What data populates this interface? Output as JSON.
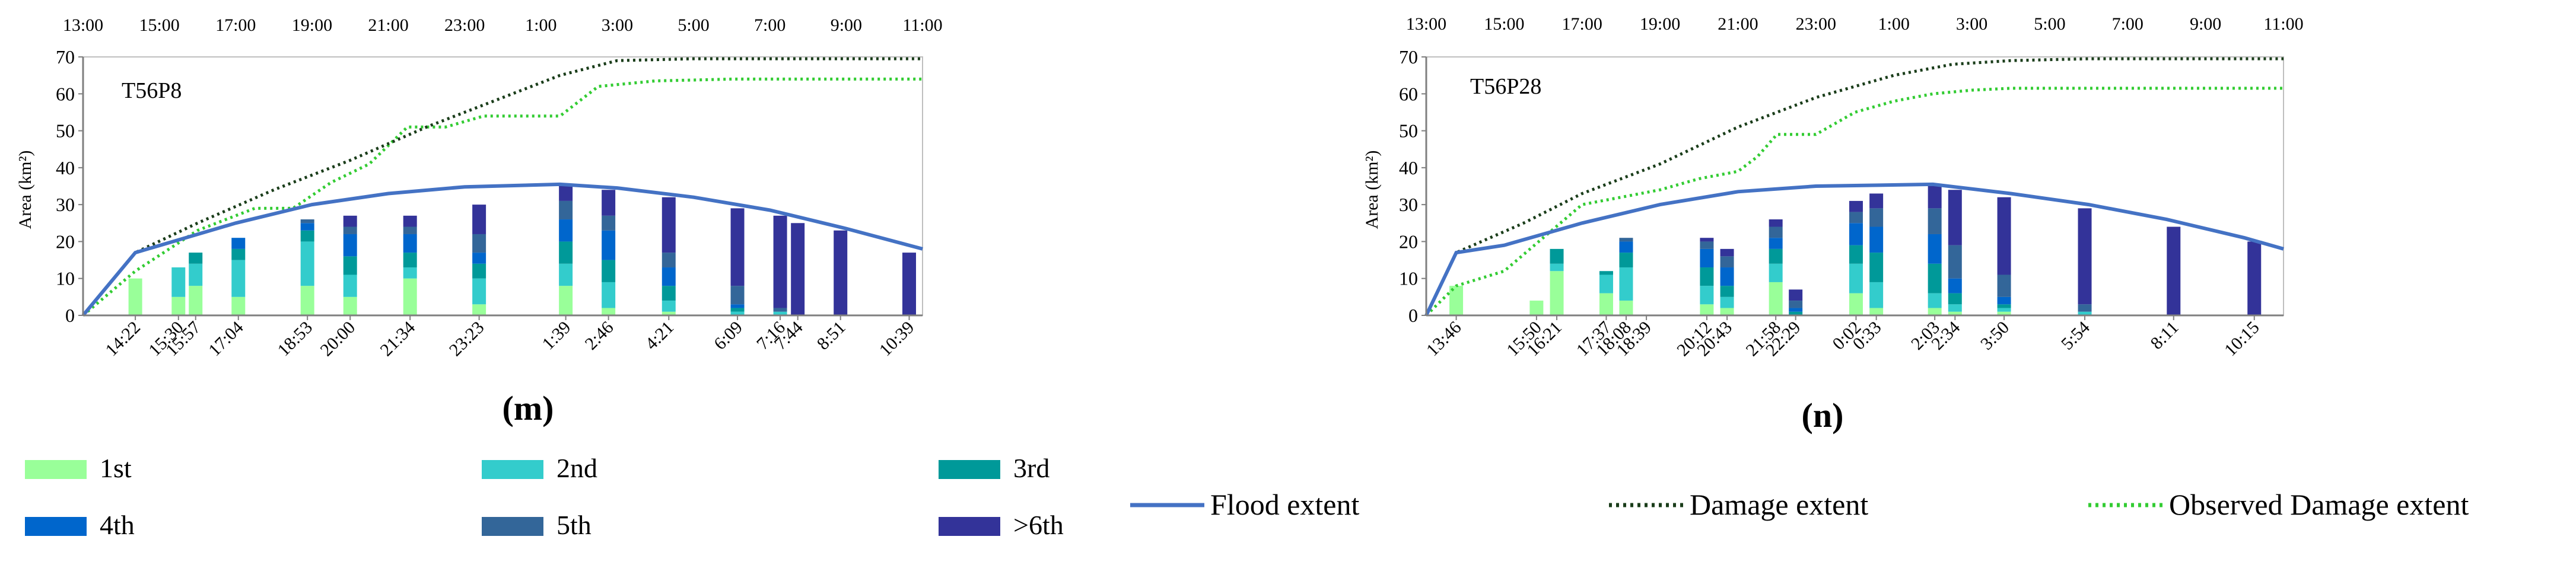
{
  "colors": {
    "rank1": "#99ff99",
    "rank2": "#33cccc",
    "rank3": "#009999",
    "rank4": "#0066cc",
    "rank5": "#336699",
    "rank6plus": "#333399",
    "flood": "#4472c4",
    "damage": "#1a3d1a",
    "observed": "#33cc33"
  },
  "legend": {
    "ranks": [
      "1st",
      "2nd",
      "3rd",
      "4th",
      "5th",
      ">6th"
    ],
    "flood": "Flood extent",
    "damage": "Damage extent",
    "observed": "Observed Damage extent"
  },
  "chart_data": [
    {
      "type": "bar",
      "panel_label": "(m)",
      "title": "T56P8",
      "ylabel": "Area (km²)",
      "ylim": [
        0,
        70
      ],
      "yticks": [
        0,
        10,
        20,
        30,
        40,
        50,
        60,
        70
      ],
      "xlim": [
        13.0,
        35.0
      ],
      "top_ticks": [
        "13:00",
        "15:00",
        "17:00",
        "19:00",
        "21:00",
        "23:00",
        "1:00",
        "3:00",
        "5:00",
        "7:00",
        "9:00",
        "11:00"
      ],
      "bars": [
        {
          "label": "14:22",
          "t": 14.37,
          "segs": [
            10,
            0,
            0,
            0,
            0,
            0
          ]
        },
        {
          "label": "15:30",
          "t": 15.5,
          "segs": [
            5,
            8,
            0,
            0,
            0,
            0
          ]
        },
        {
          "label": "15:57",
          "t": 15.95,
          "segs": [
            8,
            6,
            3,
            0,
            0,
            0
          ]
        },
        {
          "label": "17:04",
          "t": 17.07,
          "segs": [
            5,
            10,
            3,
            3,
            0,
            0
          ]
        },
        {
          "label": "18:53",
          "t": 18.88,
          "segs": [
            8,
            12,
            3,
            2,
            1,
            0
          ]
        },
        {
          "label": "20:00",
          "t": 20.0,
          "segs": [
            5,
            6,
            5,
            6,
            2,
            3
          ]
        },
        {
          "label": "21:34",
          "t": 21.57,
          "segs": [
            10,
            3,
            4,
            5,
            2,
            3
          ]
        },
        {
          "label": "23:23",
          "t": 23.38,
          "segs": [
            3,
            7,
            4,
            3,
            5,
            8
          ]
        },
        {
          "label": "1:39",
          "t": 25.65,
          "segs": [
            8,
            6,
            6,
            6,
            5,
            4
          ]
        },
        {
          "label": "2:46",
          "t": 26.77,
          "segs": [
            2,
            7,
            6,
            8,
            4,
            7
          ]
        },
        {
          "label": "4:21",
          "t": 28.35,
          "segs": [
            1,
            3,
            4,
            5,
            4,
            15
          ]
        },
        {
          "label": "6:09",
          "t": 30.15,
          "segs": [
            0,
            1,
            1,
            1,
            5,
            21
          ]
        },
        {
          "label": "7:16",
          "t": 31.27,
          "segs": [
            0,
            1,
            0,
            0,
            1,
            25
          ]
        },
        {
          "label": "7:44",
          "t": 31.73,
          "segs": [
            0,
            0,
            0,
            0,
            0,
            25
          ]
        },
        {
          "label": "8:51",
          "t": 32.85,
          "segs": [
            0,
            0,
            0,
            0,
            0,
            23
          ]
        },
        {
          "label": "10:39",
          "t": 34.65,
          "segs": [
            0,
            0,
            0,
            0,
            0,
            17
          ]
        }
      ],
      "flood_extent": [
        [
          13.0,
          0
        ],
        [
          14.37,
          17
        ],
        [
          17,
          25
        ],
        [
          19,
          30
        ],
        [
          21,
          33
        ],
        [
          23,
          34.8
        ],
        [
          25.5,
          35.5
        ],
        [
          27,
          34.5
        ],
        [
          29,
          32
        ],
        [
          31,
          28.5
        ],
        [
          33,
          23.5
        ],
        [
          35,
          18
        ]
      ],
      "damage_extent": [
        [
          13.0,
          0
        ],
        [
          14.37,
          17
        ],
        [
          16,
          25
        ],
        [
          18,
          34
        ],
        [
          20,
          42
        ],
        [
          22,
          51
        ],
        [
          24,
          59
        ],
        [
          25.5,
          65
        ],
        [
          27,
          69
        ],
        [
          29,
          69.5
        ],
        [
          31,
          69.5
        ],
        [
          33,
          69.5
        ],
        [
          35,
          69.5
        ]
      ],
      "observed_damage": [
        [
          13.0,
          0
        ],
        [
          14.37,
          12
        ],
        [
          16,
          23
        ],
        [
          17.5,
          29
        ],
        [
          18.5,
          29
        ],
        [
          19.5,
          36
        ],
        [
          20.5,
          41
        ],
        [
          21.5,
          51
        ],
        [
          22.5,
          51
        ],
        [
          23.5,
          54
        ],
        [
          25,
          54
        ],
        [
          25.5,
          54
        ],
        [
          26.5,
          62
        ],
        [
          28,
          63.5
        ],
        [
          30,
          64
        ],
        [
          32,
          64
        ],
        [
          35,
          64
        ]
      ]
    },
    {
      "type": "bar",
      "panel_label": "(n)",
      "title": "T56P28",
      "ylabel": "Area (km²)",
      "ylim": [
        0,
        70
      ],
      "yticks": [
        0,
        10,
        20,
        30,
        40,
        50,
        60,
        70
      ],
      "xlim": [
        13.0,
        35.0
      ],
      "top_ticks": [
        "13:00",
        "15:00",
        "17:00",
        "19:00",
        "21:00",
        "23:00",
        "1:00",
        "3:00",
        "5:00",
        "7:00",
        "9:00",
        "11:00"
      ],
      "bars": [
        {
          "label": "13:46",
          "t": 13.77,
          "segs": [
            8,
            0,
            0,
            0,
            0,
            0
          ]
        },
        {
          "label": "15:50",
          "t": 15.83,
          "segs": [
            4,
            0,
            0,
            0,
            0,
            0
          ]
        },
        {
          "label": "16:21",
          "t": 16.35,
          "segs": [
            12,
            2,
            4,
            0,
            0,
            0
          ]
        },
        {
          "label": "17:37",
          "t": 17.62,
          "segs": [
            6,
            5,
            1,
            0,
            0,
            0
          ]
        },
        {
          "label": "18:08",
          "t": 18.13,
          "segs": [
            4,
            9,
            4,
            3,
            1,
            0
          ]
        },
        {
          "label": "18:39",
          "t": 18.65,
          "segs": [
            0,
            0,
            0,
            0,
            0,
            0
          ]
        },
        {
          "label": "20:12",
          "t": 20.2,
          "segs": [
            3,
            5,
            5,
            5,
            2,
            1
          ]
        },
        {
          "label": "20:43",
          "t": 20.72,
          "segs": [
            2,
            3,
            3,
            5,
            3,
            2
          ]
        },
        {
          "label": "21:58",
          "t": 21.97,
          "segs": [
            9,
            5,
            4,
            3,
            3,
            2
          ]
        },
        {
          "label": "22:29",
          "t": 22.48,
          "segs": [
            0,
            0,
            1,
            1,
            2,
            3
          ]
        },
        {
          "label": "0:02",
          "t": 24.03,
          "segs": [
            6,
            8,
            5,
            6,
            3,
            3
          ]
        },
        {
          "label": "0:33",
          "t": 24.55,
          "segs": [
            2,
            7,
            8,
            7,
            5,
            4
          ]
        },
        {
          "label": "2:03",
          "t": 26.05,
          "segs": [
            2,
            4,
            8,
            8,
            7,
            6
          ]
        },
        {
          "label": "2:34",
          "t": 26.57,
          "segs": [
            1,
            2,
            3,
            4,
            9,
            15
          ]
        },
        {
          "label": "3:50",
          "t": 27.83,
          "segs": [
            1,
            1,
            1,
            2,
            6,
            21
          ]
        },
        {
          "label": "5:54",
          "t": 29.9,
          "segs": [
            0,
            1,
            0,
            0,
            2,
            26
          ]
        },
        {
          "label": "8:11",
          "t": 32.18,
          "segs": [
            0,
            0,
            0,
            0,
            0,
            24
          ]
        },
        {
          "label": "10:15",
          "t": 34.25,
          "segs": [
            0,
            0,
            0,
            0,
            0,
            20
          ]
        }
      ],
      "flood_extent": [
        [
          13.0,
          0
        ],
        [
          13.77,
          17
        ],
        [
          15,
          19
        ],
        [
          17,
          25
        ],
        [
          19,
          30
        ],
        [
          21,
          33.5
        ],
        [
          23,
          35
        ],
        [
          26,
          35.5
        ],
        [
          28,
          33
        ],
        [
          30,
          30
        ],
        [
          32,
          26
        ],
        [
          34,
          21
        ],
        [
          35,
          18
        ]
      ],
      "damage_extent": [
        [
          13.0,
          0
        ],
        [
          13.77,
          17
        ],
        [
          15.5,
          25
        ],
        [
          17,
          33
        ],
        [
          19,
          41
        ],
        [
          21,
          51
        ],
        [
          23,
          59
        ],
        [
          25,
          65
        ],
        [
          26.5,
          68
        ],
        [
          28,
          69
        ],
        [
          30,
          69.5
        ],
        [
          35,
          69.5
        ]
      ],
      "observed_damage": [
        [
          13.0,
          0
        ],
        [
          13.77,
          8
        ],
        [
          15,
          12
        ],
        [
          16,
          21
        ],
        [
          17,
          30
        ],
        [
          18,
          32
        ],
        [
          19,
          34
        ],
        [
          20,
          37
        ],
        [
          21,
          39
        ],
        [
          21.5,
          43
        ],
        [
          22,
          49
        ],
        [
          23,
          49
        ],
        [
          24,
          55
        ],
        [
          25,
          58
        ],
        [
          26,
          60
        ],
        [
          27,
          61
        ],
        [
          28,
          61.5
        ],
        [
          30,
          61.5
        ],
        [
          35,
          61.5
        ]
      ]
    }
  ]
}
